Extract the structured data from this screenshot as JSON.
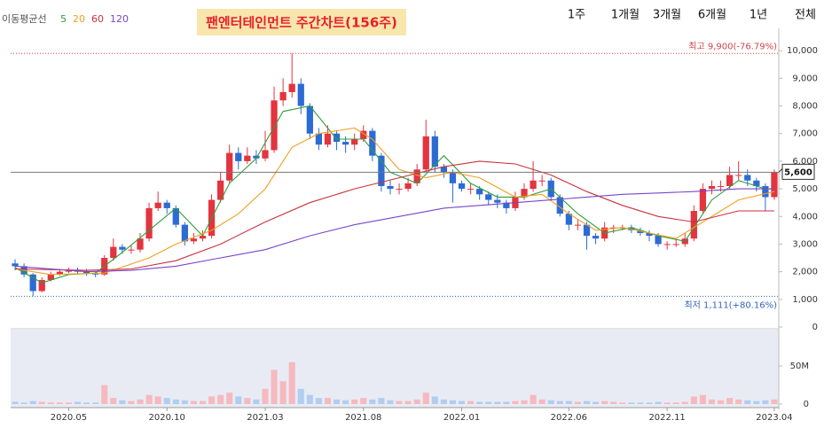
{
  "chart_data": {
    "type": "candlestick",
    "title": "팬엔터테인먼트 주간차트(156주)",
    "periods": [
      "1주",
      "1개월",
      "3개월",
      "6개월",
      "1년",
      "전체"
    ],
    "legend_title": "이동평균선",
    "categories": [
      null,
      null,
      null,
      null,
      null,
      null,
      "2020.05",
      null,
      null,
      null,
      null,
      null,
      null,
      null,
      null,
      null,
      null,
      "2020.10",
      null,
      null,
      null,
      null,
      null,
      null,
      null,
      null,
      null,
      null,
      "2021.03",
      null,
      null,
      null,
      null,
      null,
      null,
      null,
      null,
      null,
      null,
      "2021.08",
      null,
      null,
      null,
      null,
      null,
      null,
      null,
      null,
      null,
      null,
      "2022.01",
      null,
      null,
      null,
      null,
      null,
      null,
      null,
      null,
      null,
      null,
      null,
      "2022.06",
      null,
      null,
      null,
      null,
      null,
      null,
      null,
      null,
      null,
      null,
      "2022.11",
      null,
      null,
      null,
      null,
      null,
      null,
      null,
      null,
      null,
      null,
      null,
      "2023.04"
    ],
    "open": [
      2300,
      2200,
      1900,
      1300,
      1700,
      1900,
      2000,
      2050,
      2000,
      1950,
      1900,
      2500,
      2900,
      2800,
      2800,
      3200,
      4300,
      4500,
      4300,
      3700,
      3100,
      3200,
      3300,
      4600,
      5300,
      6300,
      6000,
      6200,
      6100,
      6400,
      8200,
      8500,
      8800,
      8000,
      7000,
      6600,
      7000,
      6700,
      6600,
      6800,
      7100,
      6200,
      5100,
      5000,
      5000,
      5200,
      5700,
      6900,
      5800,
      5600,
      5200,
      5000,
      5000,
      4800,
      4600,
      4500,
      4300,
      4700,
      5000,
      5300,
      5300,
      4700,
      4100,
      3700,
      3700,
      3300,
      3200,
      3600,
      3600,
      3600,
      3500,
      3400,
      3300,
      3000,
      3000,
      3000,
      3200,
      4200,
      5000,
      5100,
      5100,
      5500,
      5500,
      5300,
      5100,
      4700
    ],
    "high": [
      2450,
      2300,
      1950,
      1800,
      2000,
      2100,
      2150,
      2150,
      2100,
      2000,
      2600,
      3200,
      3000,
      2950,
      3400,
      4500,
      4900,
      4600,
      4400,
      3800,
      3400,
      3500,
      4800,
      5600,
      6600,
      6500,
      6500,
      6400,
      7100,
      8700,
      9000,
      9900,
      9000,
      8100,
      7200,
      7300,
      7100,
      6900,
      7000,
      7300,
      7200,
      6300,
      5300,
      5200,
      5400,
      5900,
      7500,
      7100,
      5900,
      5700,
      5300,
      5200,
      5100,
      4900,
      4800,
      4600,
      4900,
      5200,
      6000,
      5500,
      5400,
      4800,
      4200,
      3900,
      3800,
      3400,
      3800,
      3700,
      3700,
      3700,
      3600,
      3500,
      3400,
      3100,
      3200,
      3400,
      4400,
      5200,
      5300,
      5300,
      5800,
      6000,
      5700,
      5400,
      5200,
      5700
    ],
    "low": [
      2050,
      1800,
      1111,
      1250,
      1650,
      1850,
      1950,
      1900,
      1850,
      1800,
      1850,
      2400,
      2650,
      2650,
      2700,
      3100,
      4200,
      4100,
      3600,
      2950,
      3000,
      3100,
      3200,
      4500,
      5200,
      5700,
      5900,
      5900,
      6000,
      6300,
      8000,
      8300,
      7700,
      6800,
      6400,
      6500,
      6400,
      6300,
      6400,
      6700,
      6000,
      4900,
      4800,
      4800,
      4900,
      5100,
      5600,
      5600,
      5400,
      4500,
      4900,
      4800,
      4600,
      4400,
      4300,
      4100,
      4200,
      4600,
      4900,
      5100,
      4600,
      4000,
      3500,
      3500,
      2800,
      3000,
      3100,
      3400,
      3500,
      3400,
      3300,
      3100,
      2900,
      2800,
      2900,
      2900,
      3100,
      4100,
      4800,
      4900,
      5000,
      5300,
      5100,
      4900,
      4200,
      4600
    ],
    "close": [
      2200,
      1900,
      1300,
      1700,
      1900,
      2000,
      2050,
      2000,
      1950,
      1900,
      2500,
      2900,
      2800,
      2800,
      3200,
      4300,
      4500,
      4300,
      3700,
      3100,
      3200,
      3300,
      4600,
      5300,
      6300,
      6000,
      6200,
      6100,
      6400,
      8200,
      8500,
      8800,
      8000,
      7000,
      6600,
      7000,
      6700,
      6600,
      6800,
      7100,
      6200,
      5100,
      5000,
      5000,
      5200,
      5700,
      6900,
      5800,
      5600,
      5200,
      5000,
      5000,
      4800,
      4600,
      4500,
      4300,
      4700,
      5000,
      5300,
      5300,
      4700,
      4100,
      3700,
      3700,
      3300,
      3200,
      3600,
      3600,
      3600,
      3500,
      3400,
      3300,
      3000,
      3000,
      3000,
      3200,
      4200,
      5000,
      5100,
      5100,
      5500,
      5500,
      5300,
      5100,
      4700,
      5600
    ],
    "up_color": "#e3343f",
    "down_color": "#2c6bd4",
    "ylim": [
      0,
      11000
    ],
    "yticks": [
      0,
      {
        "value": 1000,
        "label": "1,000"
      },
      {
        "value": 2000,
        "label": "2,000"
      },
      {
        "value": 3000,
        "label": "3,000"
      },
      {
        "value": 4000,
        "label": "4,000"
      },
      {
        "value": 5000,
        "label": "5,000"
      },
      {
        "value": 6000,
        "label": "6,000"
      },
      {
        "value": 7000,
        "label": "7,000"
      },
      {
        "value": 8000,
        "label": "8,000"
      },
      {
        "value": 9000,
        "label": "9,000"
      },
      {
        "value": 10000,
        "label": "10,000"
      }
    ],
    "max_marker": {
      "value": 9900,
      "label": "최고 9,900(-76.79%)",
      "color": "#d2454a"
    },
    "min_marker": {
      "value": 1111,
      "label": "최저 1,111(+80.16%)",
      "color": "#3366bb"
    },
    "current": {
      "value": 5600,
      "label": "5,600"
    },
    "moving_averages": [
      {
        "name": "5",
        "color": "#2f9e3a",
        "x": [
          0,
          3,
          6,
          9,
          12,
          15,
          18,
          21,
          24,
          27,
          30,
          33,
          36,
          39,
          42,
          45,
          48,
          51,
          54,
          57,
          60,
          63,
          66,
          69,
          72,
          75,
          78,
          81,
          84,
          85
        ],
        "values": [
          2150,
          1600,
          1900,
          1950,
          2700,
          3500,
          4300,
          3300,
          5200,
          6100,
          7800,
          8000,
          6800,
          6800,
          5600,
          5200,
          6200,
          5200,
          4700,
          4700,
          5000,
          4100,
          3400,
          3600,
          3300,
          3100,
          4600,
          5300,
          5000,
          5000
        ]
      },
      {
        "name": "20",
        "color": "#f0a020",
        "x": [
          0,
          4,
          10,
          15,
          18,
          22,
          25,
          28,
          31,
          34,
          38,
          40,
          43,
          46,
          49,
          52,
          56,
          59,
          62,
          65,
          68,
          71,
          74,
          77,
          81,
          85
        ],
        "values": [
          2100,
          1900,
          1950,
          2500,
          3000,
          3500,
          4100,
          5000,
          6500,
          7000,
          7200,
          6800,
          5700,
          5400,
          5600,
          5400,
          4700,
          4800,
          4100,
          3500,
          3600,
          3400,
          3200,
          3800,
          4600,
          4900
        ]
      },
      {
        "name": "60",
        "color": "#c8323c",
        "x": [
          0,
          8,
          13,
          18,
          23,
          28,
          33,
          38,
          43,
          48,
          52,
          56,
          60,
          64,
          68,
          72,
          76,
          81,
          85
        ],
        "values": [
          2100,
          2050,
          2100,
          2400,
          3000,
          3800,
          4500,
          5000,
          5400,
          5800,
          6000,
          5900,
          5500,
          4900,
          4400,
          4000,
          3800,
          4200,
          4200
        ]
      },
      {
        "name": "120",
        "color": "#7a45c8",
        "x": [
          0,
          8,
          13,
          18,
          23,
          28,
          33,
          38,
          43,
          48,
          52,
          56,
          60,
          64,
          68,
          72,
          76,
          81,
          85
        ],
        "values": [
          2200,
          2000,
          2050,
          2200,
          2500,
          2800,
          3300,
          3700,
          4000,
          4300,
          4400,
          4500,
          4600,
          4700,
          4800,
          4850,
          4900,
          5000,
          5000
        ]
      }
    ],
    "volume": {
      "values": [
        3000000,
        2000000,
        4000000,
        3000000,
        2000000,
        2000000,
        2000000,
        3000000,
        2000000,
        2000000,
        25000000,
        8000000,
        5000000,
        4000000,
        6000000,
        12000000,
        10000000,
        8000000,
        6000000,
        5000000,
        4000000,
        4000000,
        10000000,
        12000000,
        15000000,
        10000000,
        8000000,
        6000000,
        20000000,
        45000000,
        30000000,
        55000000,
        20000000,
        12000000,
        8000000,
        8000000,
        6000000,
        5000000,
        6000000,
        8000000,
        6000000,
        8000000,
        5000000,
        4000000,
        4000000,
        6000000,
        15000000,
        10000000,
        6000000,
        5000000,
        4000000,
        4000000,
        3000000,
        3000000,
        3000000,
        3000000,
        4000000,
        5000000,
        12000000,
        6000000,
        5000000,
        4000000,
        4000000,
        3000000,
        4000000,
        3000000,
        4000000,
        3000000,
        2000000,
        2000000,
        2000000,
        2000000,
        3000000,
        2000000,
        2000000,
        3000000,
        10000000,
        12000000,
        6000000,
        5000000,
        8000000,
        6000000,
        5000000,
        4000000,
        5000000,
        6000000
      ],
      "up_color": "#f6b9be",
      "down_color": "#b0cdf2",
      "ylim": [
        0,
        100000000
      ],
      "yticks": [
        0,
        {
          "value": 50000000,
          "label": "50M"
        }
      ]
    }
  }
}
